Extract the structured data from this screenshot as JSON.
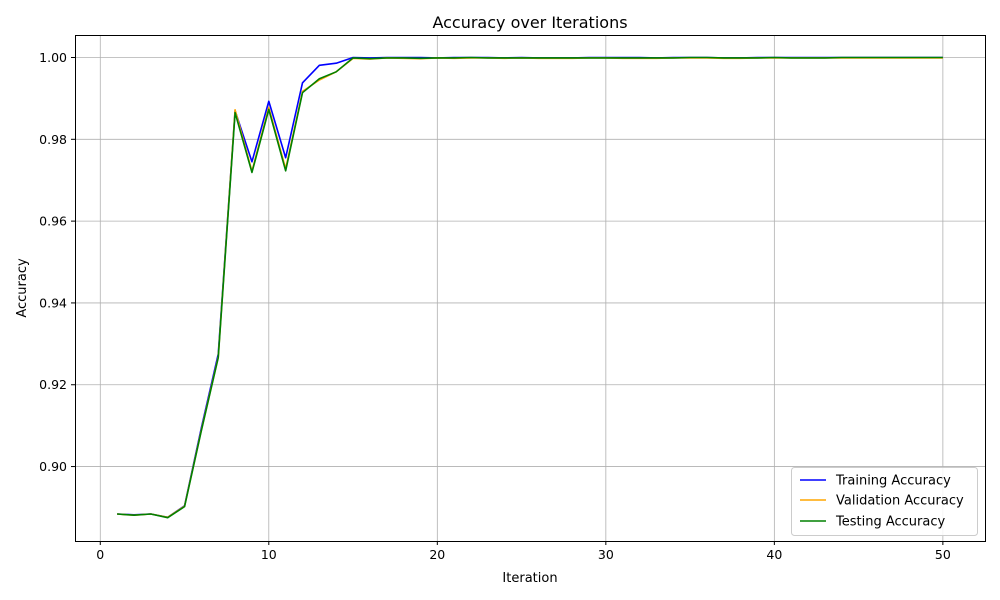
{
  "chart_data": {
    "type": "line",
    "title": "Accuracy over Iterations",
    "xlabel": "Iteration",
    "ylabel": "Accuracy",
    "xlim": [
      -1.5,
      52.5
    ],
    "ylim": [
      0.8818,
      1.0055
    ],
    "xticks": [
      0,
      10,
      20,
      30,
      40,
      50
    ],
    "yticks": [
      0.9,
      0.92,
      0.94,
      0.96,
      0.98,
      1.0
    ],
    "xtick_labels": [
      "0",
      "10",
      "20",
      "30",
      "40",
      "50"
    ],
    "ytick_labels": [
      "0.90",
      "0.92",
      "0.94",
      "0.96",
      "0.98",
      "1.00"
    ],
    "grid": true,
    "legend_position": "lower-right",
    "x": [
      1,
      2,
      3,
      4,
      5,
      6,
      7,
      8,
      9,
      10,
      11,
      12,
      13,
      14,
      15,
      16,
      17,
      18,
      19,
      20,
      21,
      22,
      23,
      24,
      25,
      26,
      27,
      28,
      29,
      30,
      31,
      32,
      33,
      34,
      35,
      36,
      37,
      38,
      39,
      40,
      41,
      42,
      43,
      44,
      45,
      46,
      47,
      48,
      49,
      50
    ],
    "series": [
      {
        "name": "Training Accuracy",
        "color": "#0000ff",
        "values": [
          0.8884,
          0.8882,
          0.8884,
          0.8876,
          0.8904,
          0.9095,
          0.9275,
          0.987,
          0.9745,
          0.9893,
          0.9755,
          0.9938,
          0.9981,
          0.9986,
          1.0,
          0.9999,
          1.0,
          1.0,
          1.0,
          0.9999,
          1.0,
          1.0,
          1.0,
          0.9999,
          1.0,
          0.9999,
          0.9999,
          0.9999,
          1.0,
          1.0,
          1.0,
          1.0,
          0.9999,
          1.0,
          1.0,
          1.0,
          0.9999,
          0.9999,
          1.0,
          1.0,
          1.0,
          1.0,
          1.0,
          1.0,
          1.0,
          1.0,
          1.0,
          1.0,
          1.0,
          1.0
        ]
      },
      {
        "name": "Validation Accuracy",
        "color": "#ffa500",
        "values": [
          0.8884,
          0.8881,
          0.8884,
          0.8876,
          0.8903,
          0.909,
          0.9268,
          0.9872,
          0.9722,
          0.9878,
          0.9728,
          0.9917,
          0.9945,
          0.9965,
          0.9998,
          0.9996,
          0.9999,
          0.9998,
          0.9997,
          0.9999,
          0.9998,
          0.9999,
          0.9999,
          0.9998,
          0.9999,
          0.9998,
          0.9998,
          0.9998,
          0.9999,
          0.9999,
          0.9998,
          0.9998,
          0.9998,
          0.9999,
          0.9999,
          0.9999,
          0.9998,
          0.9998,
          0.9999,
          0.9999,
          0.9999,
          0.9999,
          0.9999,
          0.9999,
          0.9999,
          0.9999,
          0.9999,
          0.9999,
          0.9999,
          0.9999
        ]
      },
      {
        "name": "Testing Accuracy",
        "color": "#008000",
        "values": [
          0.8884,
          0.8881,
          0.8884,
          0.8875,
          0.8902,
          0.9088,
          0.9266,
          0.9865,
          0.9719,
          0.9873,
          0.9723,
          0.9914,
          0.9948,
          0.9965,
          0.9999,
          0.9997,
          0.9999,
          0.9999,
          0.9998,
          0.9999,
          0.9999,
          1.0,
          0.9999,
          0.9999,
          0.9999,
          0.9999,
          0.9999,
          0.9999,
          0.9999,
          0.9999,
          0.9999,
          0.9999,
          0.9999,
          0.9999,
          1.0,
          1.0,
          0.9999,
          0.9999,
          0.9999,
          1.0,
          0.9999,
          0.9999,
          0.9999,
          1.0,
          1.0,
          1.0,
          1.0,
          1.0,
          1.0,
          1.0
        ]
      }
    ]
  }
}
